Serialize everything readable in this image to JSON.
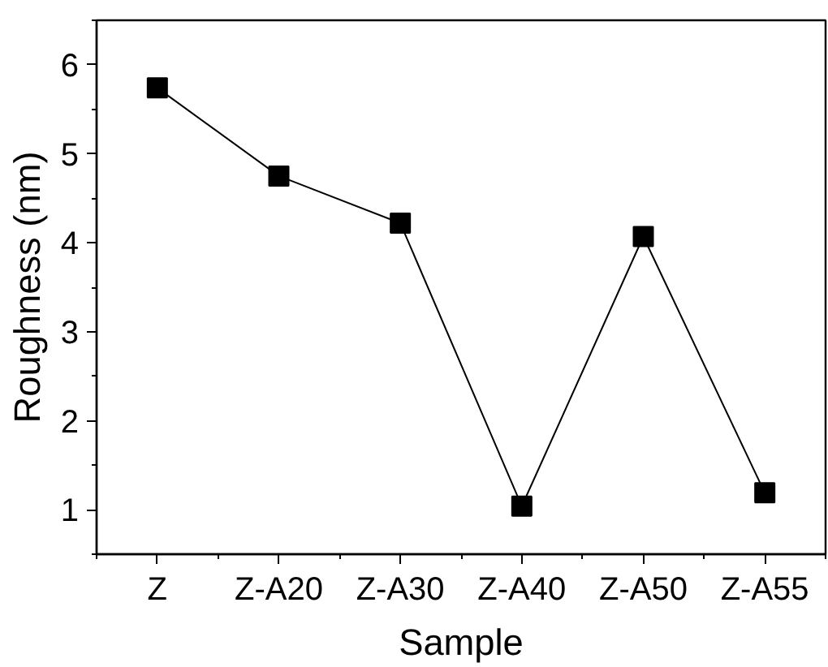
{
  "chart_data": {
    "type": "line",
    "xlabel": "Sample",
    "ylabel": "Roughness (nm)",
    "categories": [
      "Z",
      "Z-A20",
      "Z-A30",
      "Z-A40",
      "Z-A50",
      "Z-A55"
    ],
    "series": [
      {
        "color": "#000000",
        "values": [
          5.74,
          4.75,
          4.22,
          1.04,
          4.07,
          1.19
        ]
      }
    ],
    "ylim": [
      0.5,
      6.5
    ],
    "yticks": [
      1,
      2,
      3,
      4,
      5,
      6
    ],
    "marker": "square",
    "line_style": "solid",
    "grid": false
  }
}
